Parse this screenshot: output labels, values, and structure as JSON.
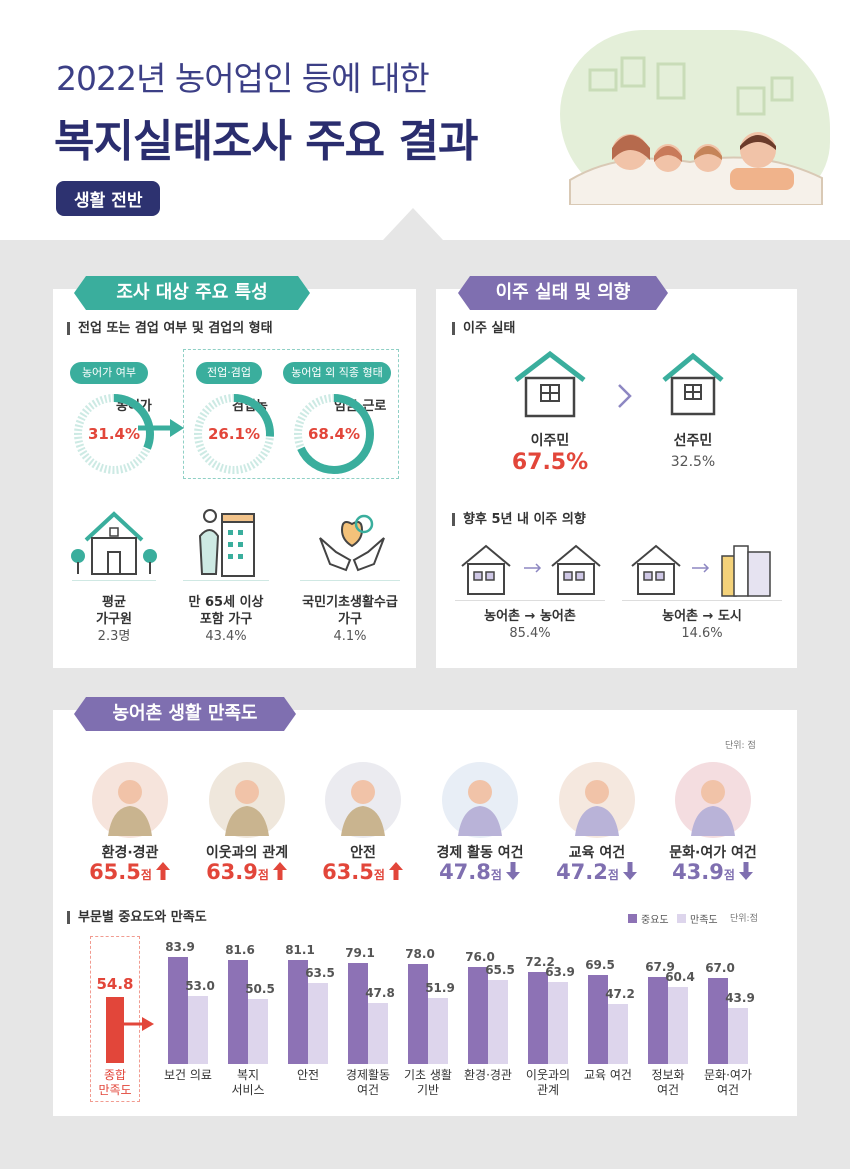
{
  "header": {
    "title_line1": "2022년 농어업인 등에 대한",
    "title_line2": "복지실태조사 주요 결과",
    "section_tag": "생활 전반"
  },
  "survey": {
    "ribbon": "조사 대상 주요 특성",
    "subhead": "전업 또는 겸업 여부 및 겸업의 형태",
    "pills": [
      "농어가 여부",
      "전업·겸업",
      "농어업 외 직종 형태"
    ],
    "rings": [
      {
        "label": "농어가",
        "pct": "31.4%",
        "value": 31.4
      },
      {
        "label": "겸업농",
        "pct": "26.1%",
        "value": 26.1
      },
      {
        "label": "임금 근로",
        "pct": "68.4%",
        "value": 68.4
      }
    ],
    "stats": [
      {
        "line1": "평균",
        "line2": "가구원",
        "value": "2.3명"
      },
      {
        "line1": "만 65세 이상",
        "line2": "포함 가구",
        "value": "43.4%"
      },
      {
        "line1": "국민기초생활수급",
        "line2": "가구",
        "value": "4.1%"
      }
    ]
  },
  "migration": {
    "ribbon": "이주 실태 및 의향",
    "subhead1": "이주 실태",
    "mover_label": "이주민",
    "mover_value": "67.5%",
    "native_label": "선주민",
    "native_value": "32.5%",
    "subhead2": "향후 5년 내 이주 의향",
    "intents": [
      {
        "label": "농어촌 → 농어촌",
        "value": "85.4%"
      },
      {
        "label": "농어촌 → 도시",
        "value": "14.6%"
      }
    ]
  },
  "satisfaction": {
    "ribbon": "농어촌 생활 만족도",
    "unit": "단위: 점",
    "items": [
      {
        "name": "환경·경관",
        "value": "65.5",
        "unit": "점",
        "trend": "up"
      },
      {
        "name": "이웃과의 관계",
        "value": "63.9",
        "unit": "점",
        "trend": "up"
      },
      {
        "name": "안전",
        "value": "63.5",
        "unit": "점",
        "trend": "up"
      },
      {
        "name": "경제 활동 여건",
        "value": "47.8",
        "unit": "점",
        "trend": "down"
      },
      {
        "name": "교육 여건",
        "value": "47.2",
        "unit": "점",
        "trend": "down"
      },
      {
        "name": "문화·여가 여건",
        "value": "43.9",
        "unit": "점",
        "trend": "down"
      }
    ],
    "chart_subhead": "부문별 중요도와 만족도",
    "legend": [
      "중요도",
      "만족도"
    ],
    "chart_unit": "단위:점",
    "overall_value": "54.8",
    "overall_label1": "종합",
    "overall_label2": "만족도"
  },
  "chart_data": {
    "type": "bar",
    "categories": [
      [
        "보건 의료"
      ],
      [
        "복지",
        "서비스"
      ],
      [
        "안전"
      ],
      [
        "경제활동",
        "여건"
      ],
      [
        "기초 생활",
        "기반"
      ],
      [
        "환경·경관"
      ],
      [
        "이웃과의",
        "관계"
      ],
      [
        "교육 여건"
      ],
      [
        "정보화",
        "여건"
      ],
      [
        "문화·여가",
        "여건"
      ]
    ],
    "series": [
      {
        "name": "중요도",
        "color": "#8d72b5",
        "values": [
          83.9,
          81.6,
          81.1,
          79.1,
          78.0,
          76.0,
          72.2,
          69.5,
          67.9,
          67.0
        ]
      },
      {
        "name": "만족도",
        "color": "#ddd5ec",
        "values": [
          53.0,
          50.5,
          63.5,
          47.8,
          51.9,
          65.5,
          63.9,
          47.2,
          60.4,
          43.9
        ]
      }
    ]
  },
  "colors": {
    "navy": "#2a2d6e",
    "green": "#3aae9d",
    "purple": "#7f6fb0",
    "red": "#e2463a"
  }
}
